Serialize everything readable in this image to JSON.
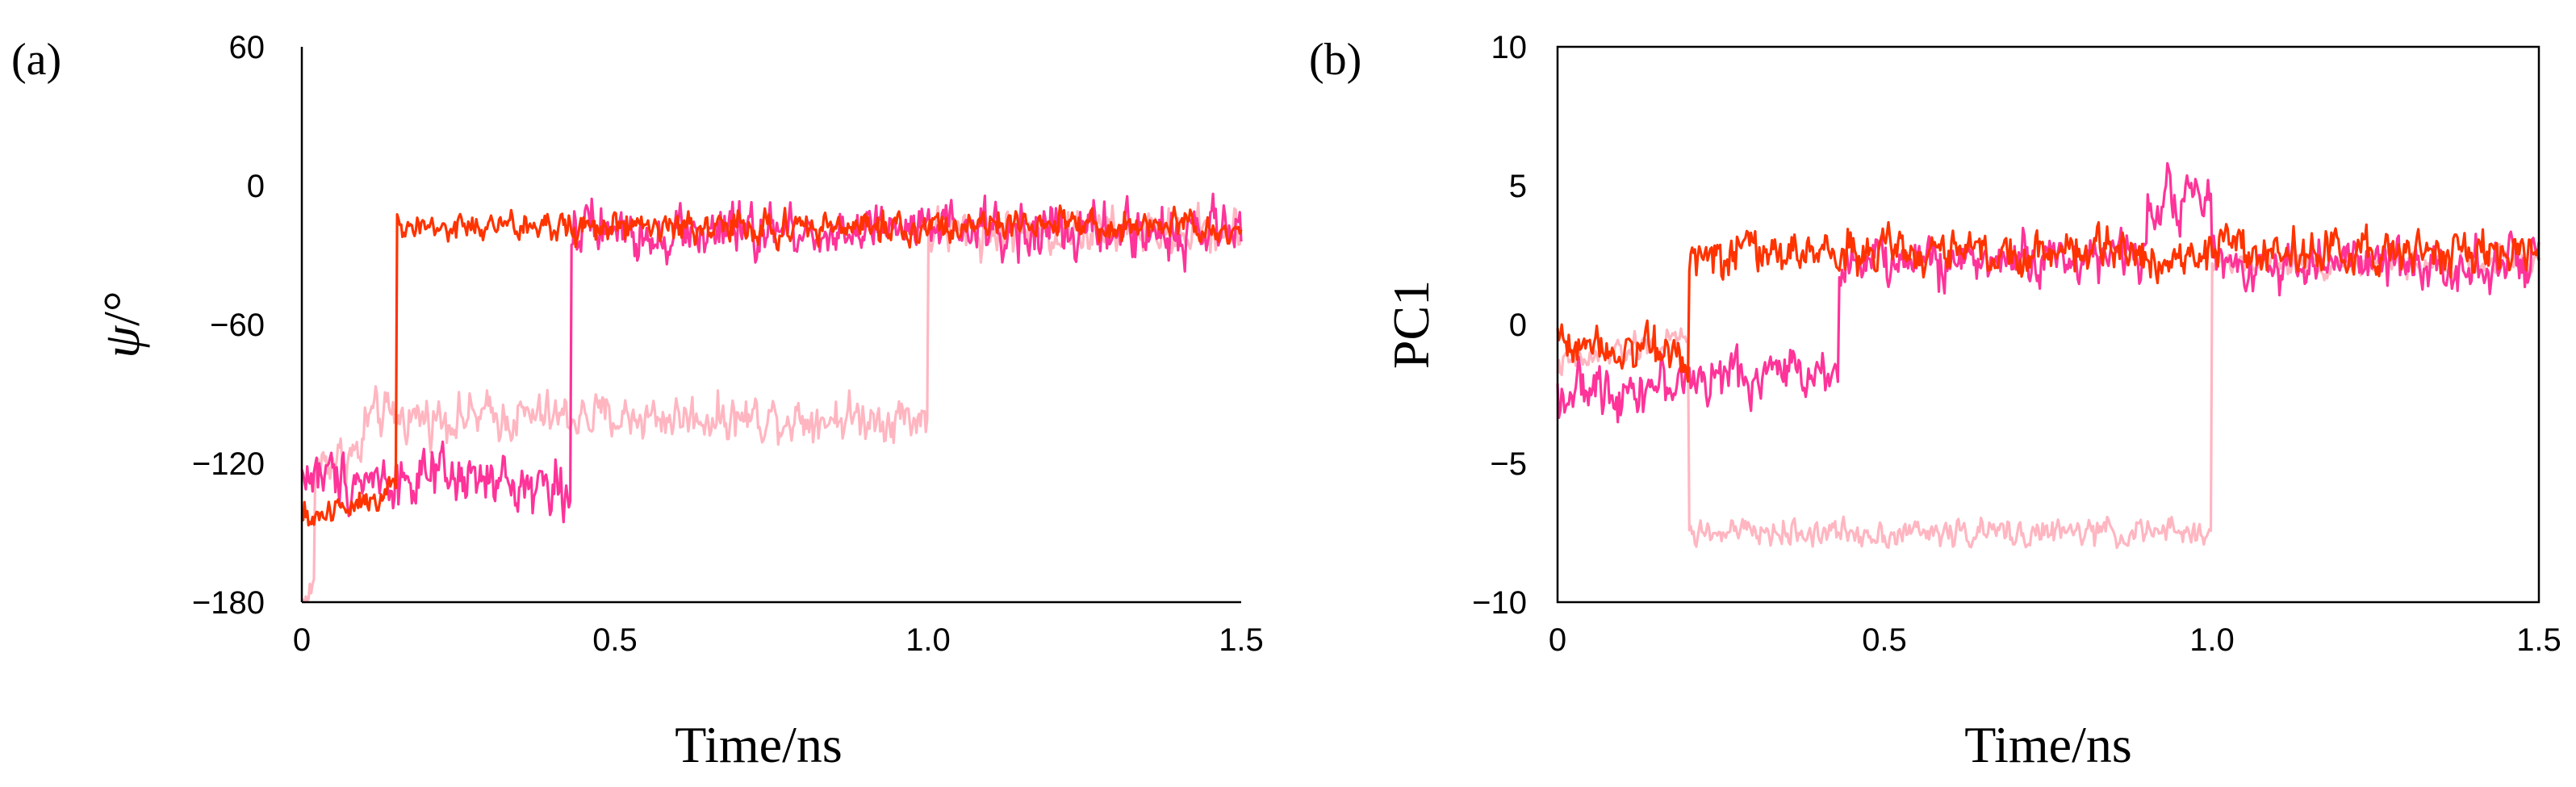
{
  "panel_a": {
    "label": "(a)",
    "xlabel": "Time/ns",
    "ylabel_symbol": "ψ",
    "ylabel_unit": "/°",
    "xticks": [
      "0",
      "0.5",
      "1.0",
      "1.5"
    ],
    "yticks": [
      "60",
      "0",
      "−60",
      "−120",
      "−180"
    ]
  },
  "panel_b": {
    "label": "(b)",
    "xlabel": "Time/ns",
    "ylabel": "PC1",
    "xticks": [
      "0",
      "0.5",
      "1.0",
      "1.5"
    ],
    "yticks": [
      "10",
      "5",
      "0",
      "−5",
      "−10"
    ]
  },
  "chart_data": [
    {
      "type": "line",
      "panel": "(a)",
      "xlabel": "Time/ns",
      "ylabel": "ψ/°",
      "xlim": [
        0,
        1.5
      ],
      "ylim": [
        -180,
        60
      ],
      "grid": false,
      "legend": "none",
      "series": [
        {
          "color": "#FFB6C1",
          "segments": [
            {
              "x": [
                0,
                0.02
              ],
              "y": [
                -180,
                -175
              ]
            },
            {
              "x": [
                0.02,
                0.1
              ],
              "y": [
                -120,
                -115
              ]
            },
            {
              "x": [
                0.1,
                1.0
              ],
              "y": [
                -100,
                -100
              ]
            },
            {
              "x": [
                1.0,
                1.5
              ],
              "y": [
                -20,
                -20
              ]
            }
          ],
          "transitions": [
            {
              "x": 1.0,
              "from": -100,
              "to": -20
            }
          ],
          "noise": 10
        },
        {
          "color": "#FF3399",
          "segments": [
            {
              "x": [
                0,
                0.43
              ],
              "y": [
                -125,
                -130
              ]
            },
            {
              "x": [
                0.43,
                1.5
              ],
              "y": [
                -20,
                -20
              ]
            }
          ],
          "transitions": [
            {
              "x": 0.43,
              "from": -130,
              "to": -20
            }
          ],
          "noise": 12
        },
        {
          "color": "#FF3300",
          "segments": [
            {
              "x": [
                0,
                0.15
              ],
              "y": [
                -145,
                -130
              ]
            },
            {
              "x": [
                0.15,
                1.5
              ],
              "y": [
                -18,
                -18
              ]
            }
          ],
          "transitions": [
            {
              "x": 0.15,
              "from": -130,
              "to": -18
            }
          ],
          "noise": 7
        }
      ]
    },
    {
      "type": "line",
      "panel": "(b)",
      "xlabel": "Time/ns",
      "ylabel": "PC1",
      "xlim": [
        0,
        1.5
      ],
      "ylim": [
        -10,
        10
      ],
      "grid": false,
      "legend": "none",
      "frame": "box",
      "series": [
        {
          "color": "#FFB6C1",
          "segments": [
            {
              "x": [
                0,
                0.2
              ],
              "y": [
                -1.5,
                -0.5
              ]
            },
            {
              "x": [
                0.2,
                1.0
              ],
              "y": [
                -7.5,
                -7.5
              ]
            },
            {
              "x": [
                1.0,
                1.5
              ],
              "y": [
                2.2,
                2.2
              ]
            }
          ],
          "transitions": [
            {
              "x": 0.2,
              "from": -0.5,
              "to": -7.5
            },
            {
              "x": 1.0,
              "from": -7.5,
              "to": 2.2
            }
          ],
          "noise": 0.5
        },
        {
          "color": "#FF3399",
          "segments": [
            {
              "x": [
                0,
                0.43
              ],
              "y": [
                -2.5,
                -1.5
              ]
            },
            {
              "x": [
                0.43,
                0.9
              ],
              "y": [
                2.2,
                2.5
              ]
            },
            {
              "x": [
                0.9,
                1.0
              ],
              "y": [
                4.6,
                4.6
              ]
            },
            {
              "x": [
                1.0,
                1.5
              ],
              "y": [
                2.2,
                2.2
              ]
            }
          ],
          "transitions": [
            {
              "x": 0.43,
              "from": -1.5,
              "to": 2.2
            }
          ],
          "noise": 0.9
        },
        {
          "color": "#FF3300",
          "segments": [
            {
              "x": [
                0,
                0.2
              ],
              "y": [
                -0.5,
                -1.0
              ]
            },
            {
              "x": [
                0.2,
                1.5
              ],
              "y": [
                2.6,
                2.6
              ]
            }
          ],
          "transitions": [
            {
              "x": 0.2,
              "from": -1.0,
              "to": 2.6
            }
          ],
          "noise": 0.8
        }
      ]
    }
  ]
}
